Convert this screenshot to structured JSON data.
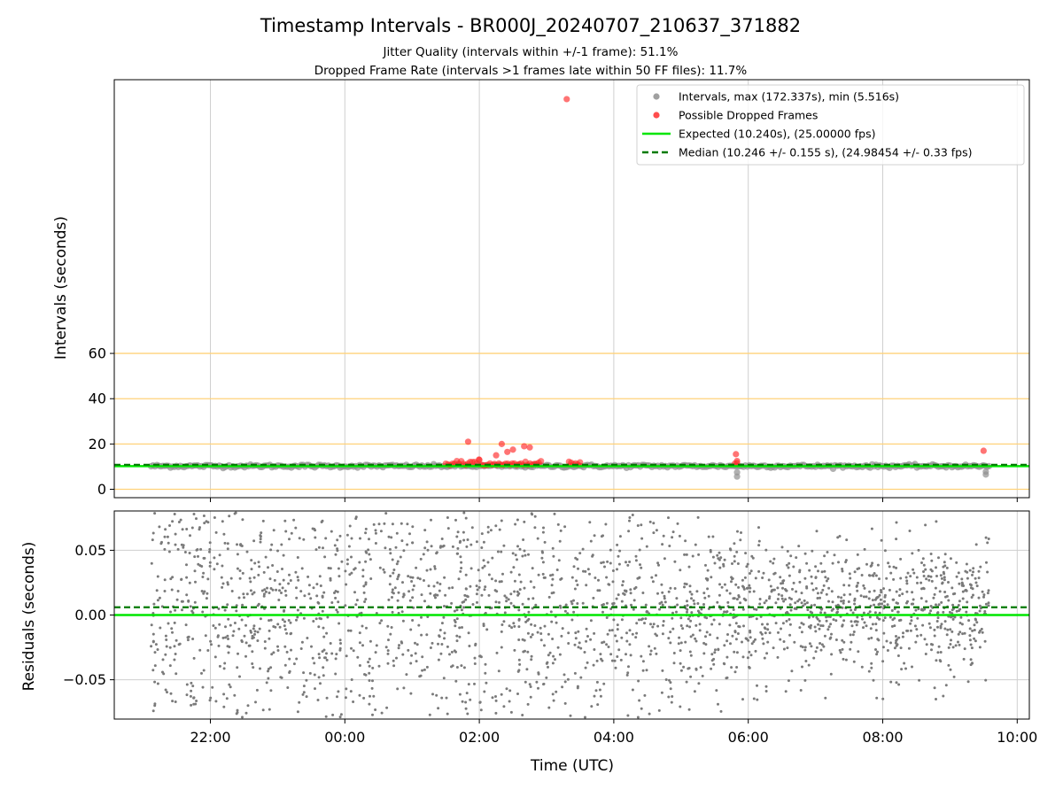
{
  "chart_data": [
    {
      "type": "scatter",
      "title": "Timestamp Intervals - BR000J_20240707_210637_371882",
      "subtitle_lines": [
        "Jitter Quality (intervals within +/-1 frame): 51.1%",
        "Dropped Frame Rate (intervals >1 frames late within 50 FF files): 11.7%"
      ],
      "xlabel": "",
      "ylabel": "Intervals (seconds)",
      "x_domain_hours_from_22": [
        -1.45,
        12.2
      ],
      "ylim": [
        -3,
        181
      ],
      "y_ticks": [
        0,
        20,
        40,
        60
      ],
      "y_tick_labels": [
        "0",
        "20",
        "40",
        "60"
      ],
      "hlines_orange": [
        0,
        20,
        40,
        60
      ],
      "grid": "vertical",
      "legend_position": "upper right",
      "legend": [
        {
          "label": "Intervals, max (172.337s), min (5.516s)",
          "marker": "circle",
          "color": "#a0a0a0"
        },
        {
          "label": "Possible Dropped Frames",
          "marker": "circle",
          "color": "#ff4d4d"
        },
        {
          "label": "Expected (10.240s), (25.00000 fps)",
          "marker": "line",
          "color": "#00e600"
        },
        {
          "label": "Median (10.246 +/- 0.155 s), (24.98454 +/- 0.33 fps)",
          "marker": "dashed",
          "color": "#007a00"
        }
      ],
      "expected_interval": 10.24,
      "median_interval": 10.246,
      "interval_band": {
        "x_start": "21:07",
        "x_end": "09:35",
        "value": 10.24
      },
      "outlier_points": [
        {
          "x": "01:50",
          "y": 21.0
        },
        {
          "x": "02:00",
          "y": 13.0
        },
        {
          "x": "02:15",
          "y": 15.0
        },
        {
          "x": "02:20",
          "y": 20.0
        },
        {
          "x": "02:25",
          "y": 16.5
        },
        {
          "x": "02:30",
          "y": 17.5
        },
        {
          "x": "02:40",
          "y": 19.0
        },
        {
          "x": "02:45",
          "y": 18.5
        },
        {
          "x": "03:18",
          "y": 172.3
        },
        {
          "x": "05:49",
          "y": 15.5
        },
        {
          "x": "05:50",
          "y": 12.5
        },
        {
          "x": "09:30",
          "y": 17.0
        }
      ],
      "dropped_clusters": [
        {
          "x_start": "01:30",
          "x_end": "02:55"
        },
        {
          "x_start": "03:20",
          "x_end": "03:30"
        },
        {
          "x_start": "05:48",
          "x_end": "05:51"
        }
      ]
    },
    {
      "type": "scatter",
      "title": "",
      "xlabel": "Time (UTC)",
      "ylabel": "Residuals (seconds)",
      "ylim": [
        -0.08,
        0.08
      ],
      "y_ticks": [
        0.05,
        0.0,
        -0.05
      ],
      "y_tick_labels": [
        "0.05",
        "0.00",
        "−0.05"
      ],
      "x_tick_labels": [
        "22:00",
        "00:00",
        "02:00",
        "04:00",
        "06:00",
        "08:00",
        "10:00"
      ],
      "grid": "both",
      "expected_line": 0.0,
      "median_line": 0.006,
      "point_color": "#7a7a7a",
      "x_range": [
        "21:07",
        "09:35"
      ],
      "spread_note_values": {
        "early_spread": 0.08,
        "late_spread": 0.04
      }
    }
  ]
}
